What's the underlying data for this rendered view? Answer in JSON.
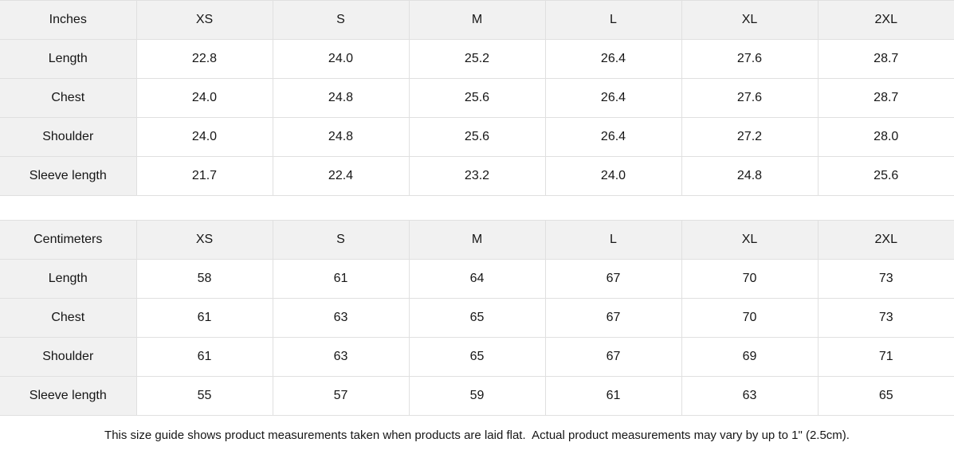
{
  "colors": {
    "header_bg": "#f1f1f1",
    "cell_bg": "#ffffff",
    "border": "#e0e0e0",
    "text": "#161616"
  },
  "tables": [
    {
      "unit_label": "Inches",
      "sizes": [
        "XS",
        "S",
        "M",
        "L",
        "XL",
        "2XL"
      ],
      "rows": [
        {
          "label": "Length",
          "values": [
            "22.8",
            "24.0",
            "25.2",
            "26.4",
            "27.6",
            "28.7"
          ]
        },
        {
          "label": "Chest",
          "values": [
            "24.0",
            "24.8",
            "25.6",
            "26.4",
            "27.6",
            "28.7"
          ]
        },
        {
          "label": "Shoulder",
          "values": [
            "24.0",
            "24.8",
            "25.6",
            "26.4",
            "27.2",
            "28.0"
          ]
        },
        {
          "label": "Sleeve length",
          "values": [
            "21.7",
            "22.4",
            "23.2",
            "24.0",
            "24.8",
            "25.6"
          ]
        }
      ]
    },
    {
      "unit_label": "Centimeters",
      "sizes": [
        "XS",
        "S",
        "M",
        "L",
        "XL",
        "2XL"
      ],
      "rows": [
        {
          "label": "Length",
          "values": [
            "58",
            "61",
            "64",
            "67",
            "70",
            "73"
          ]
        },
        {
          "label": "Chest",
          "values": [
            "61",
            "63",
            "65",
            "67",
            "70",
            "73"
          ]
        },
        {
          "label": "Shoulder",
          "values": [
            "61",
            "63",
            "65",
            "67",
            "69",
            "71"
          ]
        },
        {
          "label": "Sleeve length",
          "values": [
            "55",
            "57",
            "59",
            "61",
            "63",
            "65"
          ]
        }
      ]
    }
  ],
  "footer": {
    "note": "This size guide shows product measurements taken when products are laid flat.  Actual product measurements may vary by up to 1\" (2.5cm)."
  }
}
